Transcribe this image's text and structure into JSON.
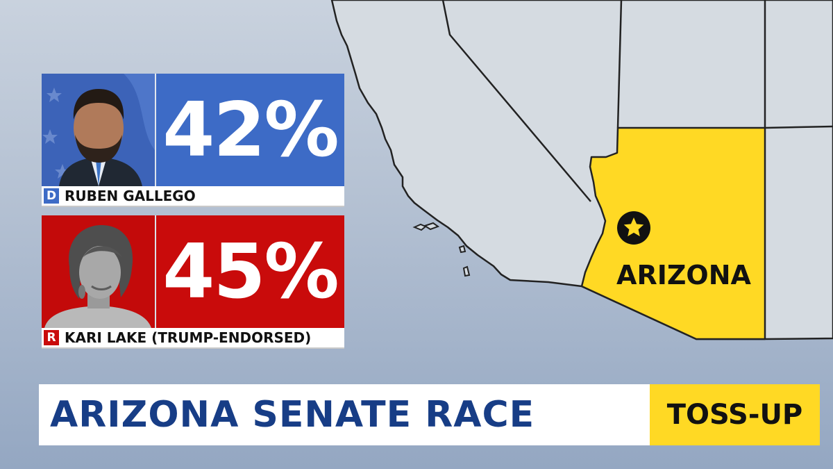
{
  "colors": {
    "democrat": "#3d6bc6",
    "republican": "#c90b0b",
    "highlight_state": "#ffd924",
    "title_text": "#173d86",
    "land": "#d5dbe1"
  },
  "candidates": [
    {
      "party": "D",
      "name": "RUBEN GALLEGO",
      "percent": "42%"
    },
    {
      "party": "R",
      "name": "KARI LAKE (TRUMP-ENDORSED)",
      "percent": "45%"
    }
  ],
  "map": {
    "state_label": "ARIZONA",
    "marker": "star-icon"
  },
  "banner": {
    "title": "ARIZONA SENATE RACE",
    "rating": "TOSS-UP"
  }
}
